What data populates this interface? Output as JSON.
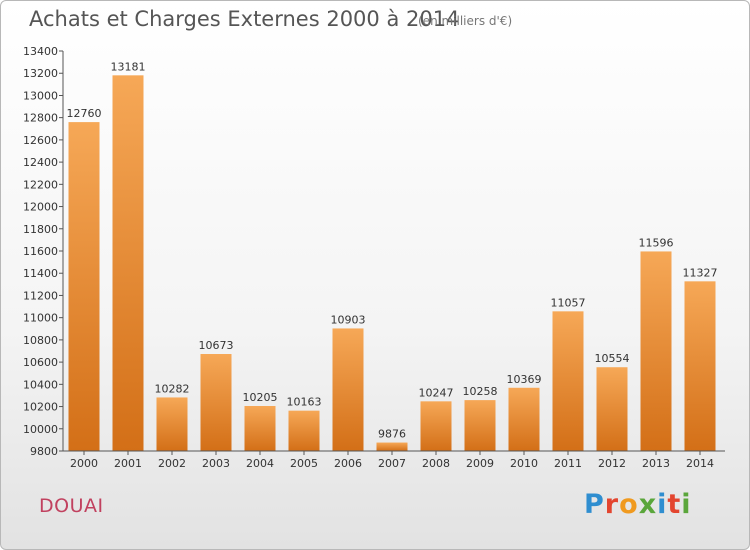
{
  "header": {
    "title": "Achats et Charges Externes 2000 à 2014",
    "unit": "(en milliers d'€)"
  },
  "footer": {
    "city": "DOUAI",
    "logo_text": "Proxiti"
  },
  "colors": {
    "bar_light": "#f6a857",
    "bar_dark": "#d36f17",
    "city": "#c1415f",
    "logo_letters": [
      "#2f8ed0",
      "#e3452f",
      "#f09a1f",
      "#5aa63b",
      "#2f8ed0",
      "#e3452f",
      "#5aa63b"
    ]
  },
  "chart_data": {
    "type": "bar",
    "title": "Achats et Charges Externes 2000 à 2014",
    "subtitle": "(en milliers d'€)",
    "categories": [
      "2000",
      "2001",
      "2002",
      "2003",
      "2004",
      "2005",
      "2006",
      "2007",
      "2008",
      "2009",
      "2010",
      "2011",
      "2012",
      "2013",
      "2014"
    ],
    "values": [
      12760,
      13181,
      10282,
      10673,
      10205,
      10163,
      10903,
      9876,
      10247,
      10258,
      10369,
      11057,
      10554,
      11596,
      11327
    ],
    "ylim": [
      9800,
      13400
    ],
    "yticks": [
      9800,
      10000,
      10200,
      10400,
      10600,
      10800,
      11000,
      11200,
      11400,
      11600,
      11800,
      12000,
      12200,
      12400,
      12600,
      12800,
      13000,
      13200,
      13400
    ],
    "grid": false,
    "data_labels": true
  }
}
